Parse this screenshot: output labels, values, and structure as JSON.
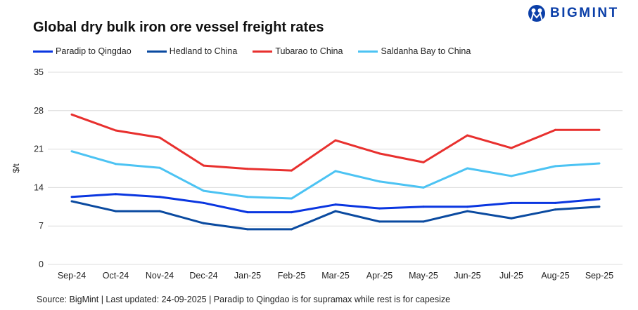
{
  "brand": {
    "logo_text": "BIGMINT",
    "color": "#0b3fa8"
  },
  "chart_data": {
    "type": "line",
    "title": "Global dry bulk iron ore vessel freight rates",
    "ylabel": "$/t",
    "xlabel": "",
    "ylim": [
      0,
      35
    ],
    "yticks": [
      0,
      7,
      14,
      21,
      28,
      35
    ],
    "grid": true,
    "legend_position": "top-left",
    "categories": [
      "Sep-24",
      "Oct-24",
      "Nov-24",
      "Dec-24",
      "Jan-25",
      "Feb-25",
      "Mar-25",
      "Apr-25",
      "May-25",
      "Jun-25",
      "Jul-25",
      "Aug-25",
      "Sep-25"
    ],
    "series": [
      {
        "name": "Paradip to Qingdao",
        "color": "#0a36e0",
        "values": [
          12.3,
          12.8,
          12.3,
          11.2,
          9.5,
          9.5,
          10.9,
          10.2,
          10.5,
          10.5,
          11.2,
          11.2,
          11.9
        ]
      },
      {
        "name": "Hedland to China",
        "color": "#0a4aa0",
        "values": [
          11.5,
          9.7,
          9.7,
          7.5,
          6.4,
          6.4,
          9.7,
          7.8,
          7.8,
          9.7,
          8.4,
          10.0,
          10.5
        ]
      },
      {
        "name": "Tubarao to China",
        "color": "#e8302e",
        "values": [
          27.3,
          24.4,
          23.1,
          18.0,
          17.4,
          17.1,
          22.6,
          20.2,
          18.6,
          23.5,
          21.2,
          24.5,
          24.5
        ]
      },
      {
        "name": "Saldanha Bay to China",
        "color": "#4cc3f3",
        "values": [
          20.6,
          18.3,
          17.6,
          13.4,
          12.3,
          12.0,
          17.0,
          15.1,
          14.0,
          17.5,
          16.1,
          17.9,
          18.4
        ]
      }
    ]
  },
  "source": "Source: BigMint | Last updated: 24-09-2025 | Paradip to Qingdao is for supramax while rest is for capesize"
}
